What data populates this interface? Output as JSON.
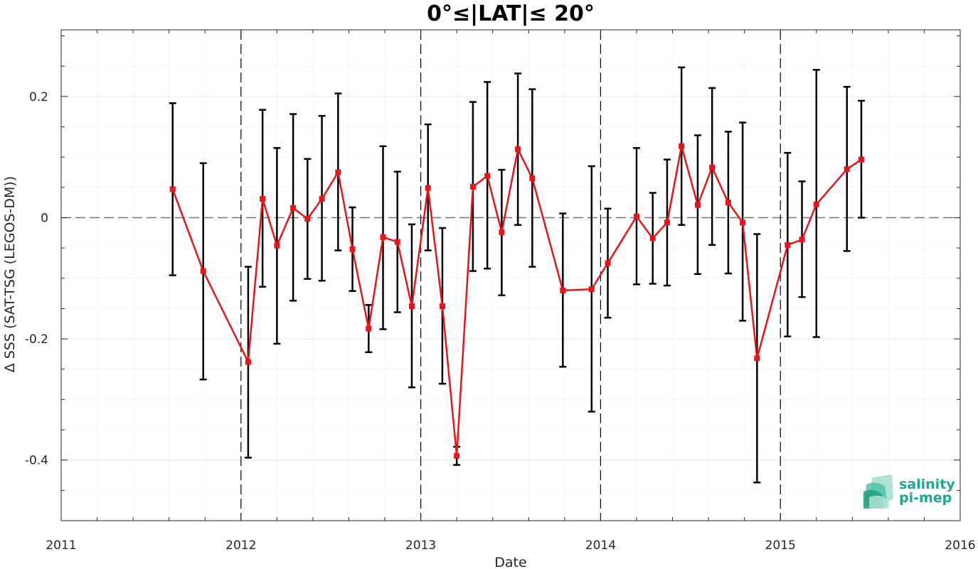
{
  "chart_data": {
    "type": "line",
    "title": "0°≤|LAT|≤ 20°",
    "xlabel": "Date",
    "ylabel": "Δ SSS (SAT-TSG (LEGOS-DM))",
    "xlim": [
      2011,
      2016
    ],
    "ylim": [
      -0.5,
      0.31
    ],
    "x_ticks": [
      "2011",
      "2012",
      "2013",
      "2014",
      "2015",
      "2016"
    ],
    "y_ticks": [
      "-0.4",
      "-0.2",
      "0",
      "0.2"
    ],
    "x_tick_values": [
      2011,
      2012,
      2013,
      2014,
      2015,
      2016
    ],
    "y_tick_values": [
      -0.4,
      -0.2,
      0,
      0.2
    ],
    "grid": true,
    "year_boundary_lines": [
      2012,
      2013,
      2014,
      2015
    ],
    "zero_line": 0,
    "series": [
      {
        "color": "#e8141a",
        "x": [
          2011.62,
          2011.79,
          2012.04,
          2012.12,
          2012.2,
          2012.29,
          2012.37,
          2012.45,
          2012.54,
          2012.62,
          2012.71,
          2012.79,
          2012.87,
          2012.95,
          2013.04,
          2013.12,
          2013.2,
          2013.29,
          2013.37,
          2013.45,
          2013.54,
          2013.62,
          2013.79,
          2013.95,
          2014.04,
          2014.2,
          2014.29,
          2014.37,
          2014.45,
          2014.54,
          2014.62,
          2014.71,
          2014.79,
          2014.87,
          2015.04,
          2015.12,
          2015.2,
          2015.37,
          2015.45
        ],
        "y": [
          0.047,
          -0.088,
          -0.238,
          0.031,
          -0.046,
          0.016,
          -0.002,
          0.031,
          0.075,
          -0.052,
          -0.183,
          -0.032,
          -0.04,
          -0.146,
          0.049,
          -0.146,
          -0.393,
          0.051,
          0.069,
          -0.024,
          0.113,
          0.065,
          -0.12,
          -0.118,
          -0.075,
          0.002,
          -0.034,
          -0.008,
          0.118,
          0.021,
          0.083,
          0.025,
          -0.008,
          -0.232,
          -0.045,
          -0.036,
          0.022,
          0.08,
          0.096
        ],
        "err_low": [
          -0.095,
          -0.267,
          -0.396,
          -0.114,
          -0.208,
          -0.137,
          -0.101,
          -0.104,
          -0.054,
          -0.121,
          -0.222,
          -0.184,
          -0.156,
          -0.28,
          -0.054,
          -0.274,
          -0.408,
          -0.088,
          -0.084,
          -0.128,
          -0.012,
          -0.081,
          -0.246,
          -0.32,
          -0.165,
          -0.11,
          -0.109,
          -0.112,
          -0.012,
          -0.093,
          -0.045,
          -0.092,
          -0.17,
          -0.437,
          -0.196,
          -0.131,
          -0.197,
          -0.055,
          0.0
        ],
        "err_high": [
          0.189,
          0.09,
          -0.081,
          0.178,
          0.115,
          0.171,
          0.097,
          0.168,
          0.205,
          0.017,
          -0.144,
          0.118,
          0.076,
          -0.011,
          0.154,
          -0.017,
          -0.378,
          0.191,
          0.224,
          0.079,
          0.238,
          0.212,
          0.007,
          0.085,
          0.015,
          0.115,
          0.041,
          0.096,
          0.248,
          0.136,
          0.214,
          0.142,
          0.157,
          -0.027,
          0.107,
          0.06,
          0.244,
          0.216,
          0.193
        ]
      }
    ]
  },
  "logo": {
    "line1": "salinity",
    "line2": "pi-mep"
  }
}
